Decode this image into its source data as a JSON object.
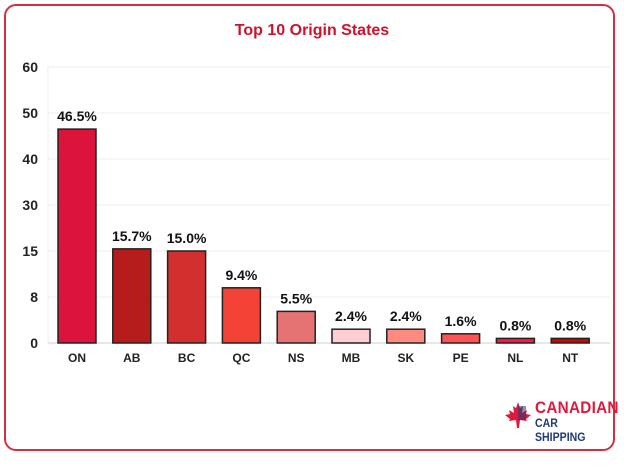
{
  "chart_data": {
    "type": "bar",
    "title": "Top 10 Origin States",
    "categories": [
      "ON",
      "AB",
      "BC",
      "QC",
      "NS",
      "MB",
      "SK",
      "PE",
      "NL",
      "NT"
    ],
    "values": [
      46.5,
      15.7,
      15.0,
      9.4,
      5.5,
      2.4,
      2.4,
      1.6,
      0.8,
      0.8
    ],
    "data_labels": [
      "46.5%",
      "15.7%",
      "15.0%",
      "9.4%",
      "5.5%",
      "2.4%",
      "2.4%",
      "1.6%",
      "0.8%",
      "0.8%"
    ],
    "colors": [
      "#dc143c",
      "#b71c1c",
      "#d32f2f",
      "#f44336",
      "#e57373",
      "#ffcdd2",
      "#ff8a80",
      "#ff5252",
      "#ff1744",
      "#d50000"
    ],
    "yticks": [
      0,
      8,
      15,
      30,
      40,
      50,
      60
    ],
    "ylim": [
      0,
      60
    ],
    "xlabel": "",
    "ylabel": "",
    "grid": true,
    "legend": "none"
  },
  "brand": {
    "line1": "CANADIAN",
    "line2": "CAR SHIPPING",
    "accent": "#e0193a",
    "secondary": "#1f3a7a"
  }
}
